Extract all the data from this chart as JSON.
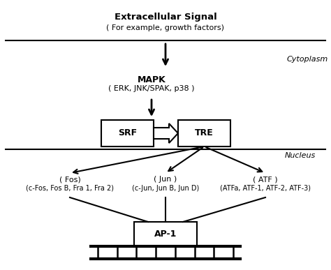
{
  "bg_color": "#ffffff",
  "title_text": "Extracellular Signal",
  "subtitle_text": "( For example, growth factors)",
  "cytoplasm_label": "Cytoplasm",
  "nucleus_label": "Nucleus",
  "mapk_line1": "MAPK",
  "mapk_line2": "( ERK, JNK/SPAK, p38 )",
  "srf_label": "SRF",
  "tre_label": "TRE",
  "fos_label": "( Fos)",
  "fos_members": "(c-Fos, Fos B, Fra 1, Fra 2)",
  "jun_label": "( Jun )",
  "jun_members": "(c-Jun, Jun B, Jun D)",
  "atf_label": "( ATF )",
  "atf_members": "(ATFa, ATF-1, ATF-2, ATF-3)",
  "ap1_label": "AP-1",
  "line_color": "#000000",
  "box_color": "#ffffff",
  "text_color": "#000000"
}
